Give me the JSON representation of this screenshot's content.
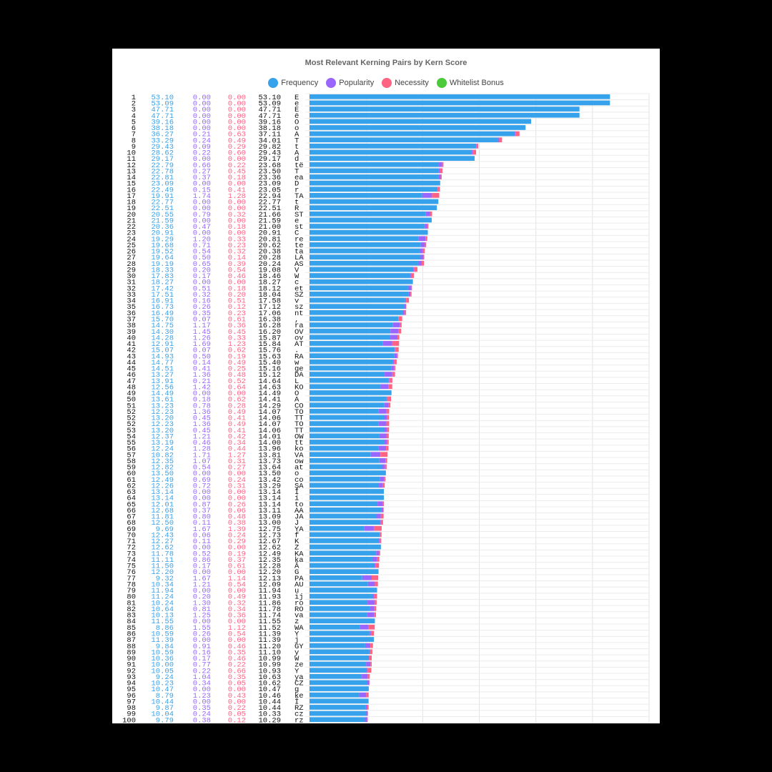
{
  "chart_data": {
    "type": "bar",
    "orientation": "horizontal",
    "stacked": true,
    "title": "Most Relevant Kerning Pairs by Kern Score",
    "legend_position": "top",
    "grid": true,
    "xlim": [
      0,
      60
    ],
    "series": [
      {
        "name": "Frequency",
        "color": "#36a2eb"
      },
      {
        "name": "Popularity",
        "color": "#9966ff"
      },
      {
        "name": "Necessity",
        "color": "#ff6384"
      },
      {
        "name": "Whitelist Bonus",
        "color": "#4bc93a"
      }
    ],
    "rows": [
      [
        1,
        "53.10",
        "0.00",
        "0.00",
        "53.10",
        "E"
      ],
      [
        2,
        "53.09",
        "0.00",
        "0.00",
        "53.09",
        "e"
      ],
      [
        3,
        "47.71",
        "0.00",
        "0.00",
        "47.71",
        "E"
      ],
      [
        4,
        "47.71",
        "0.00",
        "0.00",
        "47.71",
        "ë"
      ],
      [
        5,
        "39.16",
        "0.00",
        "0.00",
        "39.16",
        "O"
      ],
      [
        6,
        "38.18",
        "0.00",
        "0.00",
        "38.18",
        "o"
      ],
      [
        7,
        "36.27",
        "0.21",
        "0.63",
        "37.11",
        "A"
      ],
      [
        8,
        "33.29",
        "0.24",
        "0.49",
        "34.01",
        "T"
      ],
      [
        9,
        "29.43",
        "0.09",
        "0.29",
        "29.82",
        "t"
      ],
      [
        10,
        "28.62",
        "0.22",
        "0.60",
        "29.43",
        "A"
      ],
      [
        11,
        "29.17",
        "0.00",
        "0.00",
        "29.17",
        "d"
      ],
      [
        12,
        "22.79",
        "0.66",
        "0.22",
        "23.68",
        "të"
      ],
      [
        13,
        "22.78",
        "0.27",
        "0.45",
        "23.50",
        "T"
      ],
      [
        14,
        "22.81",
        "0.37",
        "0.18",
        "23.36",
        "ea"
      ],
      [
        15,
        "23.09",
        "0.00",
        "0.00",
        "23.09",
        "D"
      ],
      [
        16,
        "22.49",
        "0.15",
        "0.41",
        "23.05",
        "r"
      ],
      [
        17,
        "19.91",
        "1.74",
        "1.28",
        "22.94",
        "TA"
      ],
      [
        18,
        "22.77",
        "0.00",
        "0.00",
        "22.77",
        "t"
      ],
      [
        19,
        "22.51",
        "0.00",
        "0.00",
        "22.51",
        "R"
      ],
      [
        20,
        "20.55",
        "0.79",
        "0.32",
        "21.66",
        "ST"
      ],
      [
        21,
        "21.59",
        "0.00",
        "0.00",
        "21.59",
        "e"
      ],
      [
        22,
        "20.36",
        "0.47",
        "0.18",
        "21.00",
        "st"
      ],
      [
        23,
        "20.91",
        "0.00",
        "0.00",
        "20.91",
        "C"
      ],
      [
        24,
        "19.29",
        "1.20",
        "0.33",
        "20.81",
        "re"
      ],
      [
        25,
        "19.68",
        "0.71",
        "0.23",
        "20.62",
        "te"
      ],
      [
        26,
        "19.52",
        "0.54",
        "0.32",
        "20.38",
        "ta"
      ],
      [
        27,
        "19.64",
        "0.50",
        "0.14",
        "20.28",
        "LA"
      ],
      [
        28,
        "19.19",
        "0.65",
        "0.39",
        "20.24",
        "AS"
      ],
      [
        29,
        "18.33",
        "0.20",
        "0.54",
        "19.08",
        "V"
      ],
      [
        30,
        "17.83",
        "0.17",
        "0.46",
        "18.46",
        "W"
      ],
      [
        31,
        "18.27",
        "0.00",
        "0.00",
        "18.27",
        "c"
      ],
      [
        32,
        "17.42",
        "0.51",
        "0.18",
        "18.12",
        "et"
      ],
      [
        33,
        "17.51",
        "0.32",
        "0.20",
        "18.04",
        "SZ"
      ],
      [
        34,
        "16.91",
        "0.16",
        "0.51",
        "17.58",
        "v"
      ],
      [
        35,
        "16.73",
        "0.26",
        "0.12",
        "17.12",
        "sz"
      ],
      [
        36,
        "16.49",
        "0.35",
        "0.23",
        "17.06",
        "nt"
      ],
      [
        37,
        "15.70",
        "0.07",
        "0.61",
        "16.38",
        ","
      ],
      [
        38,
        "14.75",
        "1.17",
        "0.36",
        "16.28",
        "ra"
      ],
      [
        39,
        "14.30",
        "1.45",
        "0.45",
        "16.20",
        "OV"
      ],
      [
        40,
        "14.28",
        "1.26",
        "0.33",
        "15.87",
        "ov"
      ],
      [
        41,
        "12.91",
        "1.69",
        "1.23",
        "15.84",
        "AT"
      ],
      [
        42,
        "15.07",
        "0.07",
        "0.62",
        "15.76",
        "."
      ],
      [
        43,
        "14.93",
        "0.50",
        "0.19",
        "15.63",
        "RA"
      ],
      [
        44,
        "14.77",
        "0.14",
        "0.49",
        "15.40",
        "w"
      ],
      [
        45,
        "14.51",
        "0.41",
        "0.25",
        "15.16",
        "ge"
      ],
      [
        46,
        "13.27",
        "1.36",
        "0.48",
        "15.12",
        "DA"
      ],
      [
        47,
        "13.91",
        "0.21",
        "0.52",
        "14.64",
        "L"
      ],
      [
        48,
        "12.56",
        "1.42",
        "0.64",
        "14.63",
        "KO"
      ],
      [
        49,
        "14.49",
        "0.00",
        "0.00",
        "14.49",
        "O"
      ],
      [
        50,
        "13.61",
        "0.18",
        "0.62",
        "14.41",
        "A"
      ],
      [
        51,
        "13.23",
        "0.78",
        "0.28",
        "14.29",
        "CO"
      ],
      [
        52,
        "12.23",
        "1.36",
        "0.49",
        "14.07",
        "TO"
      ],
      [
        52,
        "13.20",
        "0.45",
        "0.41",
        "14.06",
        "TT"
      ],
      [
        52,
        "12.23",
        "1.36",
        "0.49",
        "14.07",
        "TO"
      ],
      [
        53,
        "13.20",
        "0.45",
        "0.41",
        "14.06",
        "TT"
      ],
      [
        54,
        "12.37",
        "1.21",
        "0.42",
        "14.01",
        "OW"
      ],
      [
        55,
        "13.19",
        "0.46",
        "0.34",
        "14.00",
        "tt"
      ],
      [
        56,
        "12.24",
        "1.28",
        "0.44",
        "13.96",
        "ko"
      ],
      [
        57,
        "10.82",
        "1.71",
        "1.27",
        "13.81",
        "VA"
      ],
      [
        58,
        "12.35",
        "1.07",
        "0.31",
        "13.73",
        "ow"
      ],
      [
        59,
        "12.82",
        "0.54",
        "0.27",
        "13.64",
        "at"
      ],
      [
        60,
        "13.50",
        "0.00",
        "0.00",
        "13.50",
        "o"
      ],
      [
        61,
        "12.49",
        "0.69",
        "0.24",
        "13.42",
        "co"
      ],
      [
        62,
        "12.26",
        "0.72",
        "0.31",
        "13.29",
        "ŞA"
      ],
      [
        63,
        "13.14",
        "0.00",
        "0.00",
        "13.14",
        "Í"
      ],
      [
        64,
        "13.14",
        "0.00",
        "0.00",
        "13.14",
        "í"
      ],
      [
        65,
        "12.01",
        "0.87",
        "0.26",
        "13.14",
        "to"
      ],
      [
        66,
        "12.68",
        "0.37",
        "0.06",
        "13.11",
        "AA"
      ],
      [
        67,
        "11.81",
        "0.80",
        "0.48",
        "13.09",
        "JA"
      ],
      [
        68,
        "12.50",
        "0.11",
        "0.38",
        "13.00",
        "J"
      ],
      [
        69,
        "9.69",
        "1.67",
        "1.39",
        "12.75",
        "YA"
      ],
      [
        70,
        "12.43",
        "0.06",
        "0.24",
        "12.73",
        "f"
      ],
      [
        71,
        "12.27",
        "0.11",
        "0.29",
        "12.67",
        "K"
      ],
      [
        72,
        "12.62",
        "0.00",
        "0.00",
        "12.62",
        "Z"
      ],
      [
        73,
        "11.78",
        "0.52",
        "0.19",
        "12.49",
        "KA"
      ],
      [
        74,
        "11.11",
        "0.86",
        "0.37",
        "12.35",
        "ka"
      ],
      [
        75,
        "11.50",
        "0.17",
        "0.61",
        "12.28",
        "Â"
      ],
      [
        76,
        "12.20",
        "0.00",
        "0.00",
        "12.20",
        "G"
      ],
      [
        77,
        "9.32",
        "1.67",
        "1.14",
        "12.13",
        "PA"
      ],
      [
        78,
        "10.34",
        "1.21",
        "0.54",
        "12.09",
        "AU"
      ],
      [
        79,
        "11.94",
        "0.00",
        "0.00",
        "11.94",
        "u"
      ],
      [
        80,
        "11.24",
        "0.20",
        "0.49",
        "11.93",
        "ij"
      ],
      [
        81,
        "10.24",
        "1.30",
        "0.32",
        "11.86",
        "ro"
      ],
      [
        82,
        "10.64",
        "0.81",
        "0.34",
        "11.78",
        "RO"
      ],
      [
        83,
        "10.13",
        "1.25",
        "0.36",
        "11.74",
        "va"
      ],
      [
        84,
        "11.55",
        "0.00",
        "0.00",
        "11.55",
        "z"
      ],
      [
        85,
        "8.86",
        "1.55",
        "1.12",
        "11.52",
        "WA"
      ],
      [
        86,
        "10.59",
        "0.26",
        "0.54",
        "11.39",
        "Y"
      ],
      [
        87,
        "11.39",
        "0.00",
        "0.00",
        "11.39",
        "j"
      ],
      [
        88,
        "9.84",
        "0.91",
        "0.46",
        "11.20",
        "GY"
      ],
      [
        89,
        "10.59",
        "0.16",
        "0.35",
        "11.10",
        "y"
      ],
      [
        90,
        "10.36",
        "0.17",
        "0.46",
        "10.99",
        "W"
      ],
      [
        91,
        "10.00",
        "0.77",
        "0.22",
        "10.99",
        "ze"
      ],
      [
        92,
        "10.05",
        "0.22",
        "0.66",
        "10.93",
        "Y"
      ],
      [
        93,
        "9.24",
        "1.04",
        "0.35",
        "10.63",
        "ya"
      ],
      [
        94,
        "10.23",
        "0.34",
        "0.05",
        "10.62",
        "CZ"
      ],
      [
        95,
        "10.47",
        "0.00",
        "0.00",
        "10.47",
        "g"
      ],
      [
        96,
        "8.79",
        "1.23",
        "0.43",
        "10.46",
        "ke"
      ],
      [
        97,
        "10.44",
        "0.00",
        "0.00",
        "10.44",
        "Î"
      ],
      [
        98,
        "9.87",
        "0.35",
        "0.22",
        "10.44",
        "RZ"
      ],
      [
        99,
        "10.04",
        "0.24",
        "0.05",
        "10.33",
        "cz"
      ],
      [
        100,
        "9.79",
        "0.38",
        "0.12",
        "10.29",
        "rz"
      ]
    ]
  }
}
